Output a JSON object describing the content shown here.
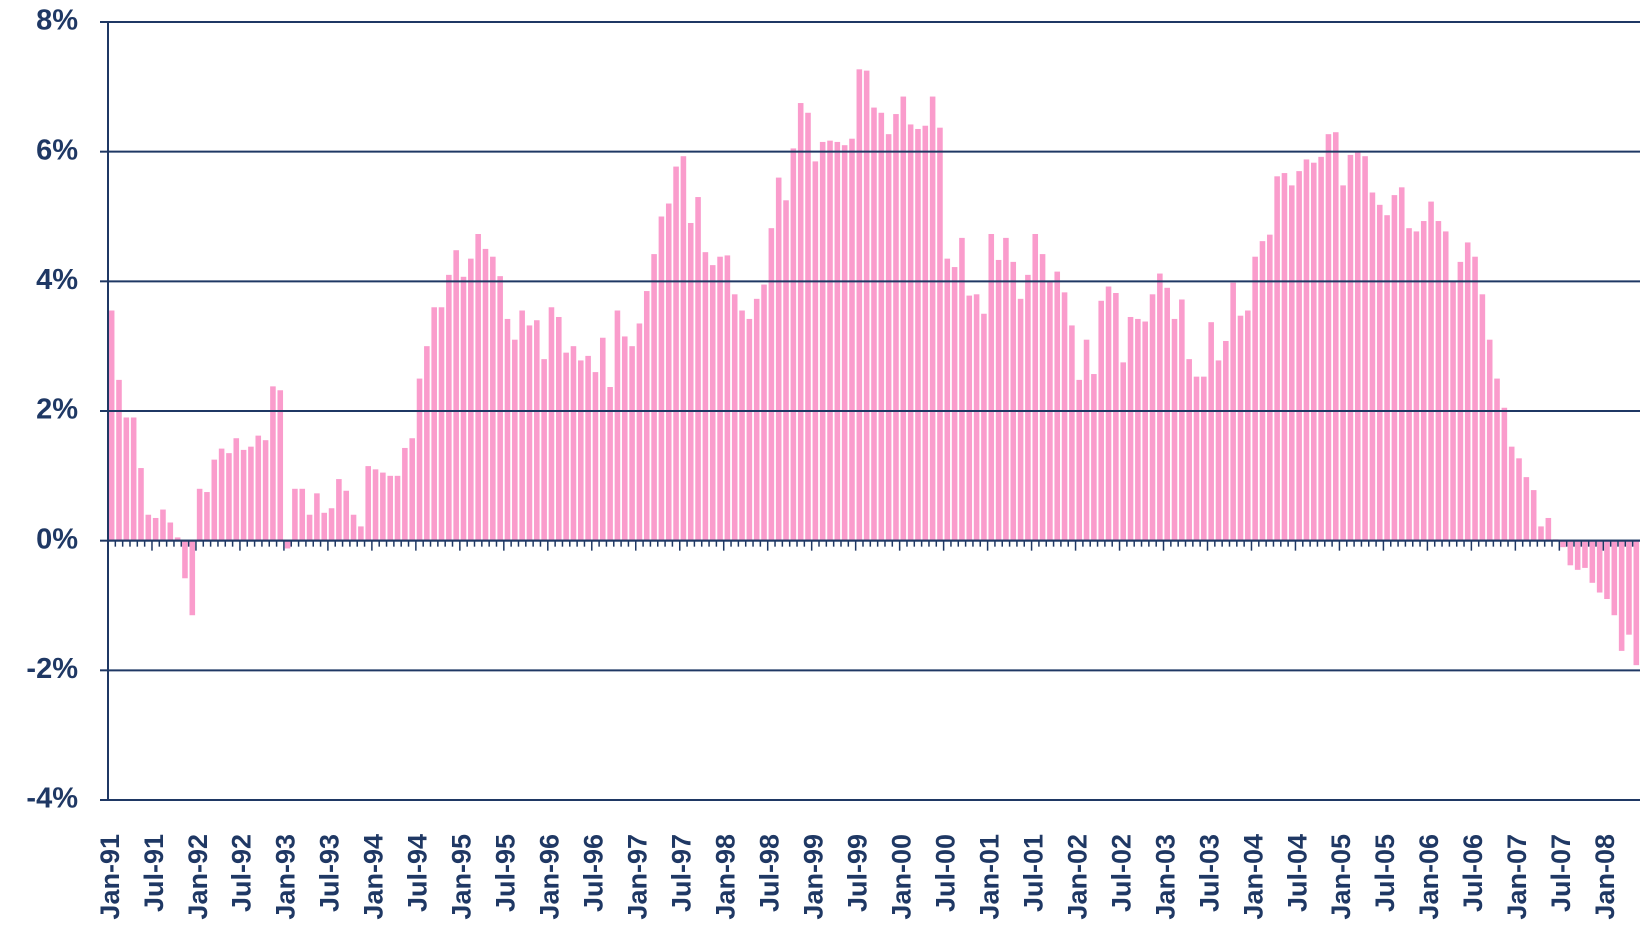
{
  "chart_data": {
    "type": "bar",
    "color": "#fa9ccc",
    "grid": true,
    "categories": [
      "Jan-91",
      null,
      null,
      null,
      null,
      null,
      "Jul-91",
      null,
      null,
      null,
      null,
      null,
      "Jan-92",
      null,
      null,
      null,
      null,
      null,
      "Jul-92",
      null,
      null,
      null,
      null,
      null,
      "Jan-93",
      null,
      null,
      null,
      null,
      null,
      "Jul-93",
      null,
      null,
      null,
      null,
      null,
      "Jan-94",
      null,
      null,
      null,
      null,
      null,
      "Jul-94",
      null,
      null,
      null,
      null,
      null,
      "Jan-95",
      null,
      null,
      null,
      null,
      null,
      "Jul-95",
      null,
      null,
      null,
      null,
      null,
      "Jan-96",
      null,
      null,
      null,
      null,
      null,
      "Jul-96",
      null,
      null,
      null,
      null,
      null,
      "Jan-97",
      null,
      null,
      null,
      null,
      null,
      "Jul-97",
      null,
      null,
      null,
      null,
      null,
      "Jan-98",
      null,
      null,
      null,
      null,
      null,
      "Jul-98",
      null,
      null,
      null,
      null,
      null,
      "Jan-99",
      null,
      null,
      null,
      null,
      null,
      "Jul-99",
      null,
      null,
      null,
      null,
      null,
      "Jan-00",
      null,
      null,
      null,
      null,
      null,
      "Jul-00",
      null,
      null,
      null,
      null,
      null,
      "Jan-01",
      null,
      null,
      null,
      null,
      null,
      "Jul-01",
      null,
      null,
      null,
      null,
      null,
      "Jan-02",
      null,
      null,
      null,
      null,
      null,
      "Jul-02",
      null,
      null,
      null,
      null,
      null,
      "Jan-03",
      null,
      null,
      null,
      null,
      null,
      "Jul-03",
      null,
      null,
      null,
      null,
      null,
      "Jan-04",
      null,
      null,
      null,
      null,
      null,
      "Jul-04",
      null,
      null,
      null,
      null,
      null,
      "Jan-05",
      null,
      null,
      null,
      null,
      null,
      "Jul-05",
      null,
      null,
      null,
      null,
      null,
      "Jan-06",
      null,
      null,
      null,
      null,
      null,
      "Jul-06",
      null,
      null,
      null,
      null,
      null,
      "Jan-07",
      null,
      null,
      null,
      null,
      null,
      "Jul-07",
      null,
      null,
      null,
      null,
      null,
      "Jan-08",
      null,
      null,
      null,
      null
    ],
    "values": [
      3.55,
      2.48,
      1.9,
      1.9,
      1.12,
      0.4,
      0.35,
      0.48,
      0.28,
      0.05,
      -0.58,
      -1.15,
      0.8,
      0.75,
      1.25,
      1.42,
      1.35,
      1.58,
      1.4,
      1.45,
      1.62,
      1.55,
      2.38,
      2.32,
      -0.12,
      0.8,
      0.8,
      0.4,
      0.73,
      0.43,
      0.5,
      0.95,
      0.77,
      0.4,
      0.22,
      1.15,
      1.1,
      1.05,
      1.0,
      1.0,
      1.43,
      1.58,
      2.5,
      3.0,
      3.6,
      3.6,
      4.1,
      4.48,
      4.07,
      4.35,
      4.73,
      4.5,
      4.38,
      4.08,
      3.42,
      3.1,
      3.55,
      3.32,
      3.4,
      2.8,
      3.6,
      3.45,
      2.9,
      3.0,
      2.78,
      2.85,
      2.6,
      3.13,
      2.37,
      3.55,
      3.15,
      3.0,
      3.35,
      3.85,
      4.42,
      5.0,
      5.2,
      5.77,
      5.93,
      4.9,
      5.3,
      4.45,
      4.25,
      4.38,
      4.4,
      3.8,
      3.55,
      3.42,
      3.73,
      3.95,
      4.82,
      5.6,
      5.25,
      6.05,
      6.75,
      6.6,
      5.85,
      6.15,
      6.17,
      6.15,
      6.1,
      6.2,
      7.27,
      7.25,
      6.68,
      6.6,
      6.27,
      6.58,
      6.85,
      6.42,
      6.35,
      6.4,
      6.85,
      6.37,
      4.35,
      4.22,
      4.67,
      3.78,
      3.8,
      3.5,
      4.73,
      4.33,
      4.67,
      4.3,
      3.73,
      4.1,
      4.73,
      4.42,
      4.0,
      4.15,
      3.83,
      3.32,
      2.48,
      3.1,
      2.57,
      3.7,
      3.92,
      3.82,
      2.75,
      3.45,
      3.42,
      3.38,
      3.8,
      4.12,
      3.9,
      3.42,
      3.72,
      2.8,
      2.53,
      2.53,
      3.37,
      2.78,
      3.08,
      3.98,
      3.47,
      3.55,
      4.38,
      4.62,
      4.72,
      5.62,
      5.67,
      5.48,
      5.7,
      5.88,
      5.83,
      5.92,
      6.27,
      6.3,
      5.48,
      5.95,
      6.0,
      5.93,
      5.37,
      5.18,
      5.02,
      5.33,
      5.45,
      4.82,
      4.77,
      4.93,
      5.23,
      4.93,
      4.77,
      4.0,
      4.3,
      4.6,
      4.38,
      3.8,
      3.1,
      2.5,
      2.05,
      1.45,
      1.27,
      0.98,
      0.78,
      0.22,
      0.35,
      0.02,
      -0.1,
      -0.38,
      -0.45,
      -0.42,
      -0.65,
      -0.8,
      -0.9,
      -1.15,
      -1.7,
      -1.45,
      -1.92
    ],
    "ylim": [
      -4,
      8
    ],
    "yticks": [
      {
        "value": -4,
        "label": "-4%"
      },
      {
        "value": -2,
        "label": "-2%"
      },
      {
        "value": 0,
        "label": "0%"
      },
      {
        "value": 2,
        "label": "2%"
      },
      {
        "value": 4,
        "label": "4%"
      },
      {
        "value": 6,
        "label": "6%"
      },
      {
        "value": 8,
        "label": "8%"
      }
    ]
  }
}
